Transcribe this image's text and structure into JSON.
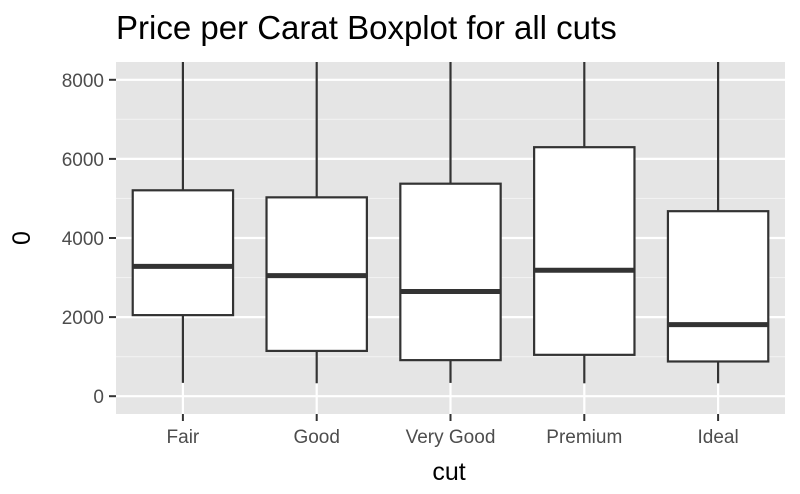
{
  "chart_data": {
    "type": "boxplot",
    "title": "Price per Carat Boxplot for all cuts",
    "xlabel": "cut",
    "ylabel": "0",
    "categories": [
      "Fair",
      "Good",
      "Very Good",
      "Premium",
      "Ideal"
    ],
    "y_ticks": [
      0,
      2000,
      4000,
      6000,
      8000
    ],
    "y_tick_labels": [
      "0",
      "2000",
      "4000",
      "6000",
      "8000"
    ],
    "ylim": [
      -450,
      8450
    ],
    "boxes": [
      {
        "name": "Fair",
        "whisker_low": 337,
        "q1": 2050,
        "median": 3282,
        "q3": 5206,
        "whisker_high": 8450
      },
      {
        "name": "Good",
        "whisker_low": 327,
        "q1": 1145,
        "median": 3050,
        "q3": 5028,
        "whisker_high": 8450
      },
      {
        "name": "Very Good",
        "whisker_low": 336,
        "q1": 912,
        "median": 2648,
        "q3": 5373,
        "whisker_high": 8450
      },
      {
        "name": "Premium",
        "whisker_low": 326,
        "q1": 1046,
        "median": 3185,
        "q3": 6296,
        "whisker_high": 8450
      },
      {
        "name": "Ideal",
        "whisker_low": 326,
        "q1": 878,
        "median": 1810,
        "q3": 4678,
        "whisker_high": 8450
      }
    ],
    "grid": true,
    "legend": "none",
    "colors": {
      "panel_background": "#e5e5e5",
      "grid_major": "#ffffff",
      "grid_minor": "#f2f2f2",
      "box_fill": "#ffffff",
      "box_stroke": "#333333"
    }
  }
}
